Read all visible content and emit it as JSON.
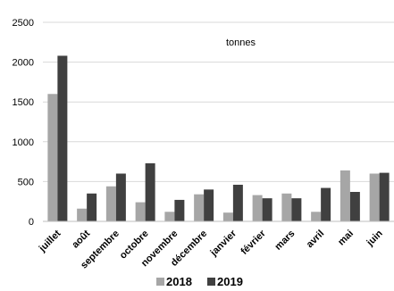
{
  "chart_data": {
    "type": "bar",
    "annotation": "tonnes",
    "categories": [
      "juillet",
      "août",
      "septembre",
      "octobre",
      "novembre",
      "décembre",
      "janvier",
      "février",
      "mars",
      "avril",
      "mai",
      "juin"
    ],
    "series": [
      {
        "name": "2018",
        "color": "#a6a6a6",
        "values": [
          1600,
          160,
          440,
          240,
          120,
          340,
          110,
          330,
          350,
          120,
          640,
          600
        ]
      },
      {
        "name": "2019",
        "color": "#404040",
        "values": [
          2080,
          350,
          600,
          730,
          270,
          400,
          460,
          290,
          290,
          420,
          370,
          610
        ]
      }
    ],
    "ylim": [
      0,
      2500
    ],
    "yticks": [
      0,
      500,
      1000,
      1500,
      2000,
      2500
    ],
    "grid": true,
    "legend_position": "bottom"
  }
}
